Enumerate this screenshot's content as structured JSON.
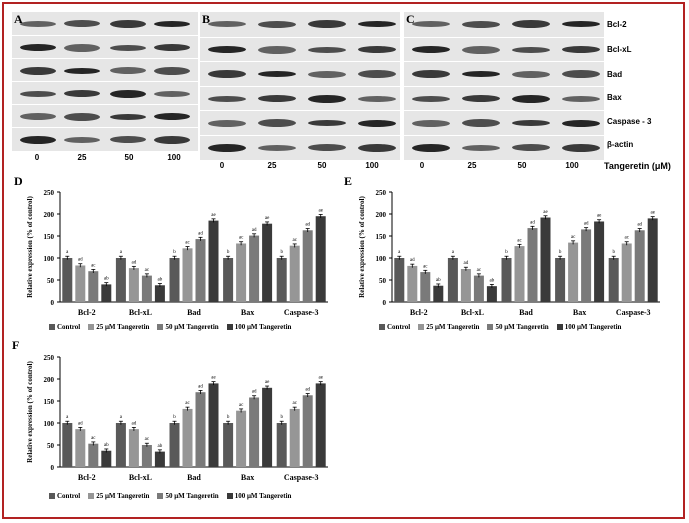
{
  "figure": {
    "panel_letters": [
      "A",
      "B",
      "C",
      "D",
      "E",
      "F"
    ],
    "blot_rows": [
      "Bcl-2",
      "Bcl-xL",
      "Bad",
      "Bax",
      "Caspase - 3",
      "β-actin"
    ],
    "lanes": [
      "0",
      "25",
      "50",
      "100"
    ],
    "tangeretin_label": "Tangeretin (μM)",
    "legend": [
      "Control",
      "25 μM Tangeretin",
      "50 μM Tangeretin",
      "100 μM Tangeretin"
    ],
    "colors": {
      "frame": "#b22222",
      "series": [
        "#595959",
        "#969696",
        "#7a7a7a",
        "#3a3a3a"
      ]
    }
  },
  "chart_data": [
    {
      "panel": "D",
      "type": "bar",
      "categories": [
        "Bcl-2",
        "Bcl-xL",
        "Bad",
        "Bax",
        "Caspase-3"
      ],
      "ylabel": "Relative expression (% of control)",
      "ylim": [
        0,
        250
      ],
      "yticks": [
        0,
        50,
        100,
        150,
        200,
        250
      ],
      "series": [
        {
          "name": "Control",
          "values": [
            100,
            100,
            100,
            100,
            100
          ]
        },
        {
          "name": "25 μM Tangeretin",
          "values": [
            83,
            77,
            122,
            133,
            128
          ]
        },
        {
          "name": "50 μM Tangeretin",
          "values": [
            70,
            60,
            143,
            151,
            163
          ]
        },
        {
          "name": "100 μM Tangeretin",
          "values": [
            40,
            38,
            185,
            178,
            195
          ]
        }
      ],
      "annotations": [
        [
          "a",
          "ad",
          "ac",
          "ab"
        ],
        [
          "a",
          "ad",
          "ac",
          "ab"
        ],
        [
          "b",
          "ac",
          "ad",
          "ae"
        ],
        [
          "b",
          "ac",
          "ad",
          "ae"
        ],
        [
          "b",
          "ac",
          "ad",
          "ae"
        ]
      ]
    },
    {
      "panel": "E",
      "type": "bar",
      "categories": [
        "Bcl-2",
        "Bcl-xL",
        "Bad",
        "Bax",
        "Caspase-3"
      ],
      "ylabel": "Relative expression (% of control)",
      "ylim": [
        0,
        250
      ],
      "yticks": [
        0,
        50,
        100,
        150,
        200,
        250
      ],
      "series": [
        {
          "name": "Control",
          "values": [
            100,
            100,
            100,
            100,
            100
          ]
        },
        {
          "name": "25 μM Tangeretin",
          "values": [
            82,
            75,
            127,
            135,
            133
          ]
        },
        {
          "name": "50 μM Tangeretin",
          "values": [
            68,
            60,
            168,
            165,
            163
          ]
        },
        {
          "name": "100 μM Tangeretin",
          "values": [
            37,
            36,
            192,
            183,
            190
          ]
        }
      ],
      "annotations": [
        [
          "a",
          "ad",
          "ac",
          "ab"
        ],
        [
          "a",
          "ad",
          "ac",
          "ab"
        ],
        [
          "b",
          "ac",
          "ad",
          "ae"
        ],
        [
          "b",
          "ac",
          "ad",
          "ae"
        ],
        [
          "b",
          "ac",
          "ad",
          "ae"
        ]
      ]
    },
    {
      "panel": "F",
      "type": "bar",
      "categories": [
        "Bcl-2",
        "Bcl-xL",
        "Bad",
        "Bax",
        "Caspase-3"
      ],
      "ylabel": "Relative expression (% of control)",
      "ylim": [
        0,
        250
      ],
      "yticks": [
        0,
        50,
        100,
        150,
        200,
        250
      ],
      "series": [
        {
          "name": "Control",
          "values": [
            100,
            100,
            100,
            100,
            100
          ]
        },
        {
          "name": "25 μM Tangeretin",
          "values": [
            86,
            86,
            132,
            128,
            132
          ]
        },
        {
          "name": "50 μM Tangeretin",
          "values": [
            53,
            50,
            170,
            158,
            163
          ]
        },
        {
          "name": "100 μM Tangeretin",
          "values": [
            37,
            35,
            190,
            180,
            190
          ]
        }
      ],
      "annotations": [
        [
          "a",
          "ad",
          "ac",
          "ab"
        ],
        [
          "a",
          "ad",
          "ac",
          "ab"
        ],
        [
          "b",
          "ac",
          "ad",
          "ae"
        ],
        [
          "b",
          "ac",
          "ad",
          "ae"
        ],
        [
          "b",
          "ac",
          "ad",
          "ae"
        ]
      ]
    }
  ]
}
